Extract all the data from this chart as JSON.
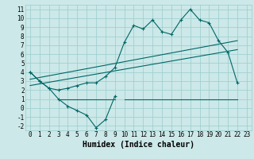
{
  "background_color": "#cce8e8",
  "grid_color": "#99cccc",
  "line_color": "#006666",
  "xlabel": "Humidex (Indice chaleur)",
  "xlim": [
    -0.5,
    23.5
  ],
  "ylim": [
    -2.5,
    11.5
  ],
  "xticks": [
    0,
    1,
    2,
    3,
    4,
    5,
    6,
    7,
    8,
    9,
    10,
    11,
    12,
    13,
    14,
    15,
    16,
    17,
    18,
    19,
    20,
    21,
    22,
    23
  ],
  "yticks": [
    -2,
    -1,
    0,
    1,
    2,
    3,
    4,
    5,
    6,
    7,
    8,
    9,
    10,
    11
  ],
  "series_upper_x": [
    0,
    1,
    2,
    3,
    4,
    5,
    6,
    7,
    8,
    9,
    10,
    11,
    12,
    13,
    14,
    15,
    16,
    17,
    18,
    19,
    20,
    21,
    22
  ],
  "series_upper_y": [
    4.0,
    3.0,
    2.2,
    2.0,
    2.2,
    2.5,
    2.8,
    2.8,
    3.5,
    4.5,
    7.3,
    9.2,
    8.8,
    9.8,
    8.5,
    8.2,
    9.8,
    11.0,
    9.8,
    9.5,
    7.5,
    6.2,
    2.8
  ],
  "series_lower_x": [
    0,
    1,
    2,
    3,
    4,
    5,
    6,
    7,
    8,
    9
  ],
  "series_lower_y": [
    4.0,
    3.0,
    2.2,
    1.0,
    0.2,
    -0.3,
    -0.8,
    -2.2,
    -1.3,
    1.3
  ],
  "trend1_x": [
    0,
    22
  ],
  "trend1_y": [
    2.5,
    6.5
  ],
  "trend2_x": [
    0,
    22
  ],
  "trend2_y": [
    3.2,
    7.5
  ],
  "hline1_x": [
    3,
    9
  ],
  "hline1_y": [
    1.0,
    1.0
  ],
  "hline2_x": [
    10,
    22
  ],
  "hline2_y": [
    1.0,
    1.0
  ],
  "font_size_label": 7,
  "font_size_tick": 5.5
}
